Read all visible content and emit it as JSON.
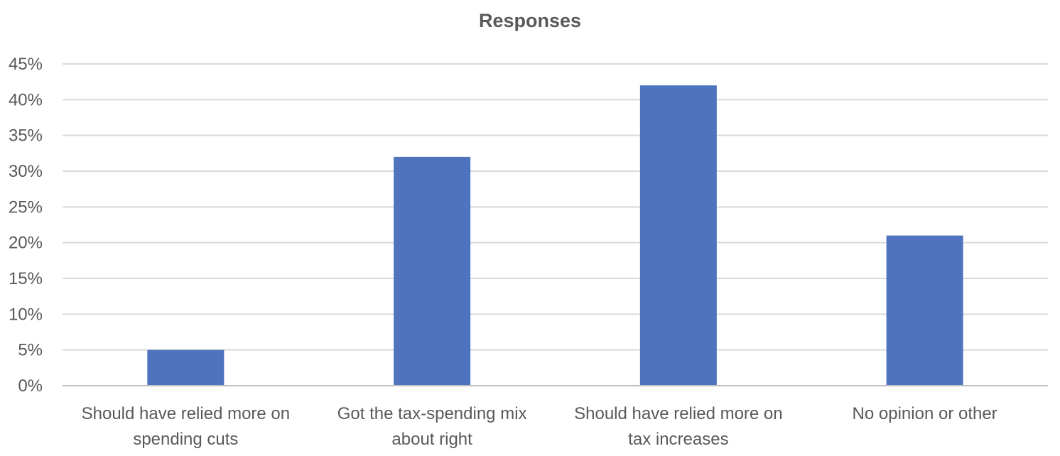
{
  "chart_data": {
    "type": "bar",
    "title": "Responses",
    "categories": [
      "Should have relied more on spending cuts",
      "Got the tax-spending mix about right",
      "Should have relied more on tax increases",
      "No opinion or other"
    ],
    "category_label_lines": [
      [
        "Should have relied more on",
        "spending cuts"
      ],
      [
        "Got the tax-spending mix",
        "about right"
      ],
      [
        "Should have relied more on",
        "tax increases"
      ],
      [
        "No opinion or other"
      ]
    ],
    "values": [
      5,
      32,
      42,
      21
    ],
    "value_unit": "%",
    "ylim": [
      0,
      45
    ],
    "yticks": [
      "0%",
      "5%",
      "10%",
      "15%",
      "20%",
      "25%",
      "30%",
      "35%",
      "40%",
      "45%"
    ],
    "xlabel": "",
    "ylabel": "",
    "grid": true,
    "legend": "none",
    "colors": {
      "bar": "#4e74bf",
      "grid": "#d9d9d9",
      "axis": "#bfbfbf",
      "tick_text": "#595959",
      "title_text": "#595959"
    }
  }
}
